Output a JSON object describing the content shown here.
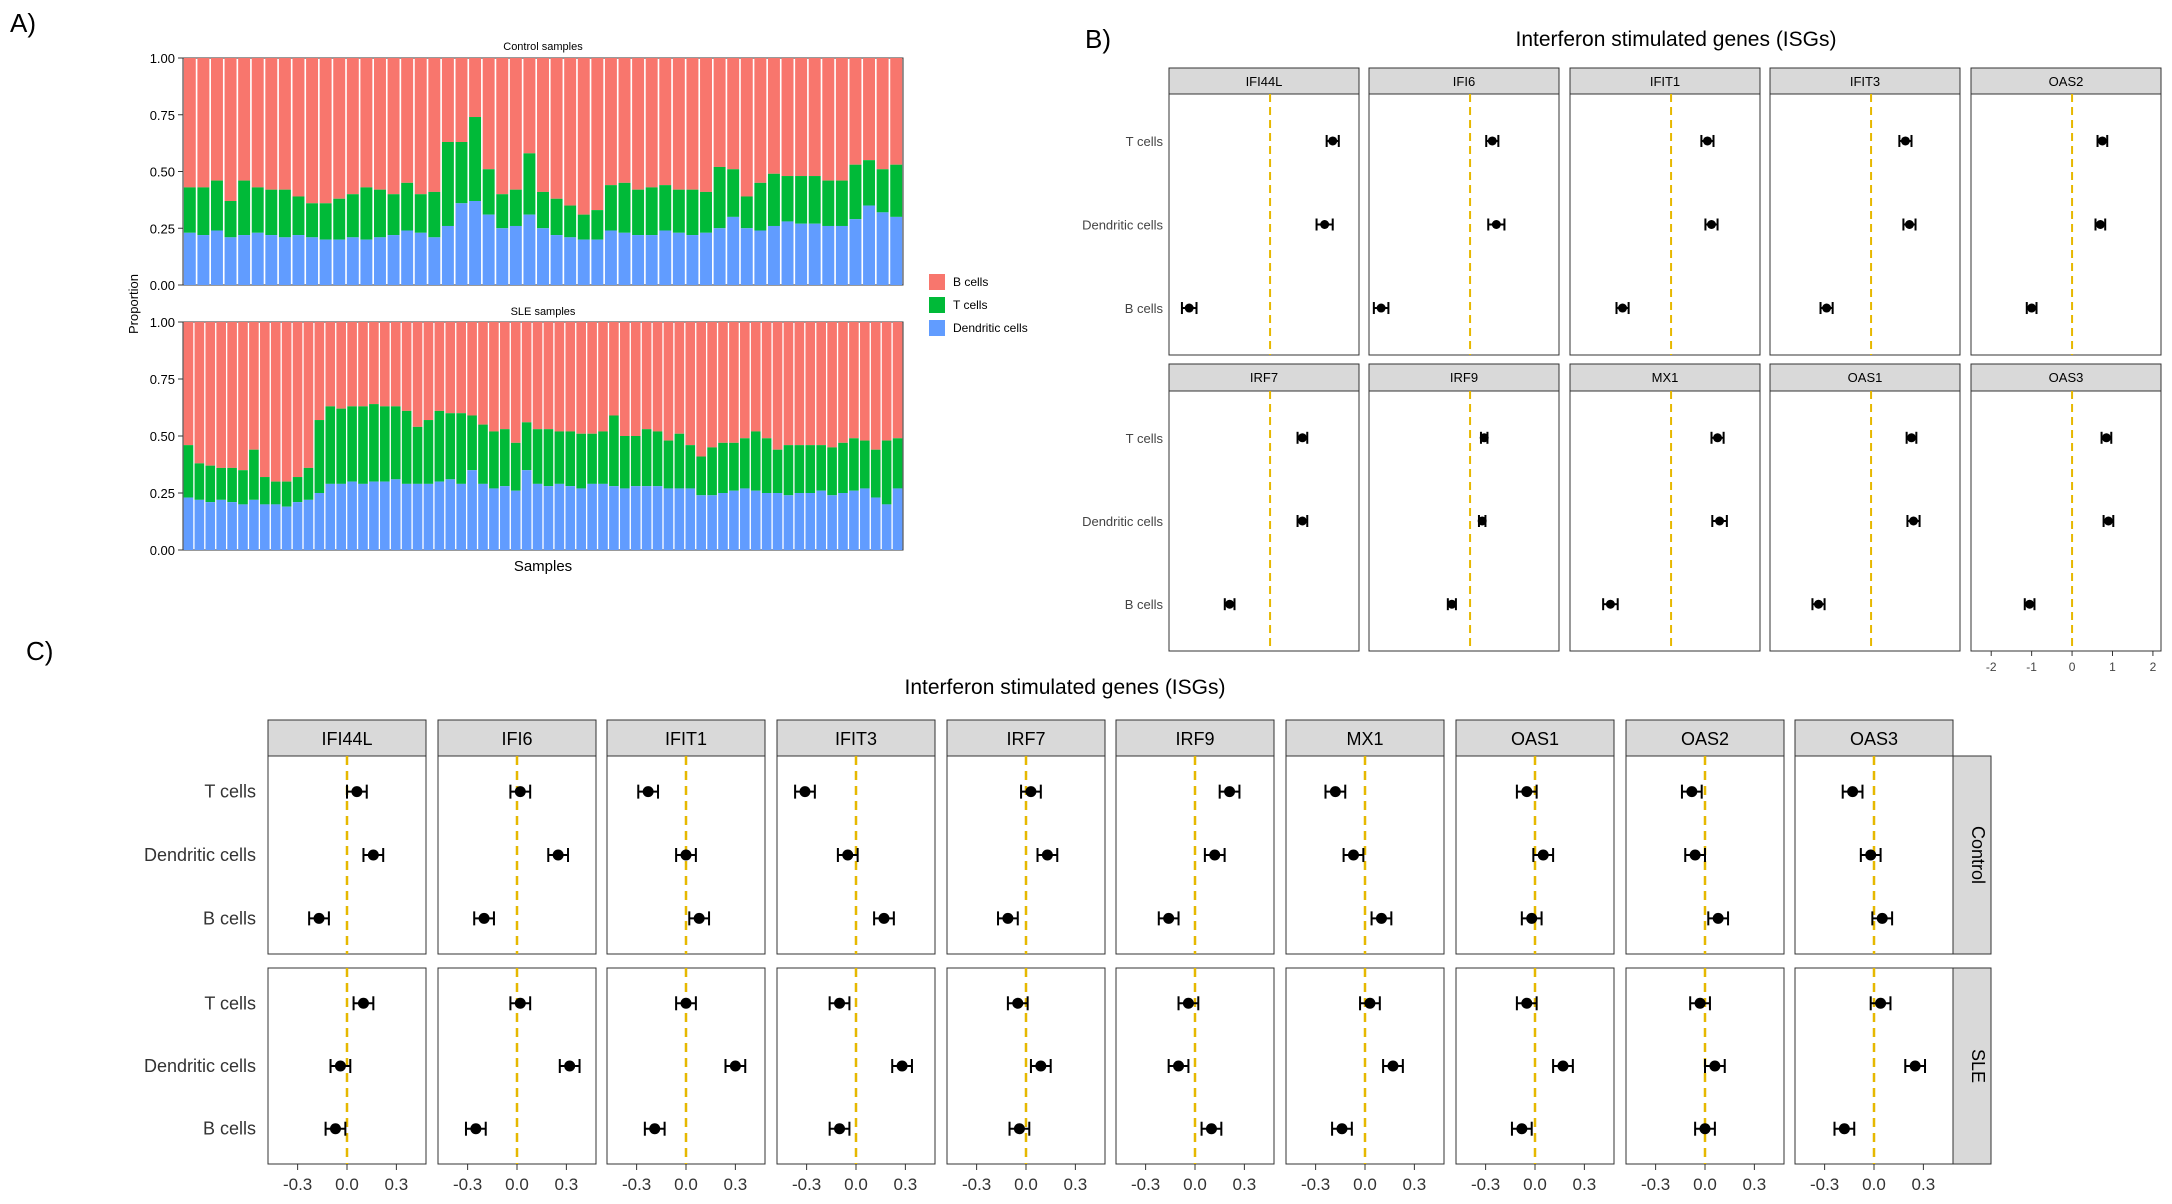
{
  "panel_labels": {
    "a": "A)",
    "b": "B)",
    "c": "C)"
  },
  "colors": {
    "b_cells": "#F8766D",
    "t_cells": "#00BA38",
    "dendritic": "#619CFF",
    "ref_line": "#E6B800",
    "strip": "#D9D9D9"
  },
  "chart_data": [
    {
      "type": "bar",
      "id": "A",
      "stacked": true,
      "xlabel": "Samples",
      "ylabel": "Proportion",
      "yticks": [
        "0.00",
        "0.25",
        "0.50",
        "0.75",
        "1.00"
      ],
      "ylim": [
        0,
        1
      ],
      "legend": [
        "B cells",
        "T cells",
        "Dendritic cells"
      ],
      "legend_position": "right",
      "facets": [
        {
          "title": "Control samples",
          "dendritic": [
            0.23,
            0.22,
            0.24,
            0.21,
            0.22,
            0.23,
            0.22,
            0.21,
            0.22,
            0.21,
            0.2,
            0.2,
            0.21,
            0.2,
            0.21,
            0.22,
            0.24,
            0.23,
            0.21,
            0.26,
            0.36,
            0.37,
            0.31,
            0.25,
            0.26,
            0.31,
            0.25,
            0.22,
            0.21,
            0.2,
            0.2,
            0.24,
            0.23,
            0.22,
            0.22,
            0.24,
            0.23,
            0.22,
            0.23,
            0.25,
            0.3,
            0.25,
            0.24,
            0.26,
            0.28,
            0.27,
            0.27,
            0.26,
            0.26,
            0.29,
            0.35,
            0.32,
            0.3
          ],
          "t_cells": [
            0.2,
            0.21,
            0.22,
            0.16,
            0.24,
            0.2,
            0.2,
            0.21,
            0.17,
            0.15,
            0.16,
            0.18,
            0.19,
            0.23,
            0.21,
            0.18,
            0.21,
            0.17,
            0.2,
            0.37,
            0.27,
            0.37,
            0.2,
            0.15,
            0.16,
            0.27,
            0.16,
            0.16,
            0.14,
            0.11,
            0.13,
            0.2,
            0.22,
            0.2,
            0.21,
            0.2,
            0.19,
            0.2,
            0.18,
            0.27,
            0.21,
            0.14,
            0.21,
            0.23,
            0.2,
            0.21,
            0.21,
            0.2,
            0.2,
            0.24,
            0.2,
            0.19,
            0.23
          ]
        },
        {
          "title": "SLE samples",
          "dendritic": [
            0.23,
            0.22,
            0.21,
            0.22,
            0.21,
            0.2,
            0.22,
            0.2,
            0.2,
            0.19,
            0.21,
            0.22,
            0.25,
            0.29,
            0.29,
            0.3,
            0.29,
            0.3,
            0.3,
            0.31,
            0.29,
            0.29,
            0.29,
            0.3,
            0.31,
            0.29,
            0.35,
            0.29,
            0.27,
            0.28,
            0.26,
            0.35,
            0.29,
            0.28,
            0.29,
            0.28,
            0.27,
            0.29,
            0.29,
            0.28,
            0.27,
            0.28,
            0.28,
            0.28,
            0.27,
            0.27,
            0.27,
            0.24,
            0.24,
            0.25,
            0.26,
            0.27,
            0.26,
            0.25,
            0.25,
            0.24,
            0.25,
            0.25,
            0.26,
            0.24,
            0.25,
            0.26,
            0.27,
            0.23,
            0.2,
            0.27
          ],
          "t_cells": [
            0.23,
            0.16,
            0.16,
            0.14,
            0.15,
            0.15,
            0.22,
            0.12,
            0.1,
            0.11,
            0.11,
            0.14,
            0.32,
            0.34,
            0.33,
            0.33,
            0.34,
            0.34,
            0.33,
            0.32,
            0.32,
            0.25,
            0.28,
            0.31,
            0.29,
            0.31,
            0.24,
            0.26,
            0.25,
            0.25,
            0.21,
            0.21,
            0.24,
            0.25,
            0.23,
            0.24,
            0.24,
            0.22,
            0.23,
            0.31,
            0.23,
            0.22,
            0.25,
            0.24,
            0.21,
            0.24,
            0.19,
            0.17,
            0.21,
            0.22,
            0.21,
            0.22,
            0.26,
            0.24,
            0.19,
            0.22,
            0.21,
            0.21,
            0.2,
            0.21,
            0.22,
            0.23,
            0.21,
            0.21,
            0.28,
            0.22
          ]
        }
      ]
    },
    {
      "type": "scatter",
      "id": "B",
      "title": "Interferon stimulated genes (ISGs)",
      "subtype": "forest",
      "xlim": [
        -2.5,
        2.2
      ],
      "xticks": [
        "-2",
        "-1",
        "0",
        "1",
        "2"
      ],
      "reference_line": 0,
      "rows": [
        "T cells",
        "Dendritic cells",
        "B cells"
      ],
      "facets": [
        {
          "gene": "IFI44L",
          "estimates": [
            1.55,
            1.35,
            -2.0
          ],
          "ci": [
            0.15,
            0.2,
            0.18
          ]
        },
        {
          "gene": "IFI6",
          "estimates": [
            0.55,
            0.65,
            -2.2
          ],
          "ci": [
            0.15,
            0.2,
            0.18
          ]
        },
        {
          "gene": "IFIT1",
          "estimates": [
            0.9,
            1.0,
            -1.2
          ],
          "ci": [
            0.15,
            0.15,
            0.15
          ]
        },
        {
          "gene": "IFIT3",
          "estimates": [
            0.85,
            0.95,
            -1.1
          ],
          "ci": [
            0.15,
            0.15,
            0.15
          ]
        },
        {
          "gene": "OAS2",
          "estimates": [
            0.75,
            0.7,
            -1.0
          ],
          "ci": [
            0.12,
            0.12,
            0.12
          ]
        },
        {
          "gene": "IRF7",
          "estimates": [
            0.8,
            0.8,
            -1.0
          ],
          "ci": [
            0.12,
            0.12,
            0.12
          ]
        },
        {
          "gene": "IRF9",
          "estimates": [
            0.35,
            0.3,
            -0.45
          ],
          "ci": [
            0.08,
            0.08,
            0.1
          ]
        },
        {
          "gene": "MX1",
          "estimates": [
            1.15,
            1.2,
            -1.5
          ],
          "ci": [
            0.15,
            0.18,
            0.18
          ]
        },
        {
          "gene": "OAS1",
          "estimates": [
            1.0,
            1.05,
            -1.3
          ],
          "ci": [
            0.12,
            0.15,
            0.15
          ]
        },
        {
          "gene": "OAS3",
          "estimates": [
            0.85,
            0.9,
            -1.05
          ],
          "ci": [
            0.12,
            0.12,
            0.12
          ]
        }
      ]
    },
    {
      "type": "scatter",
      "id": "C",
      "title": "Interferon stimulated genes (ISGs)",
      "subtype": "forest",
      "xlim": [
        -0.48,
        0.48
      ],
      "xticks": [
        "-0.3",
        "0.0",
        "0.3"
      ],
      "reference_line": 0,
      "rows": [
        "T cells",
        "Dendritic cells",
        "B cells"
      ],
      "genes": [
        "IFI44L",
        "IFI6",
        "IFIT1",
        "IFIT3",
        "IRF7",
        "IRF9",
        "MX1",
        "OAS1",
        "OAS2",
        "OAS3"
      ],
      "groups": [
        "Control",
        "SLE"
      ],
      "estimates": {
        "Control": [
          [
            0.06,
            0.16,
            -0.17
          ],
          [
            0.02,
            0.25,
            -0.2
          ],
          [
            -0.23,
            0.0,
            0.08
          ],
          [
            -0.31,
            -0.05,
            0.17
          ],
          [
            0.03,
            0.13,
            -0.11
          ],
          [
            0.21,
            0.12,
            -0.16
          ],
          [
            -0.18,
            -0.07,
            0.1
          ],
          [
            -0.05,
            0.05,
            -0.02
          ],
          [
            -0.08,
            -0.06,
            0.08
          ],
          [
            -0.13,
            -0.02,
            0.05
          ]
        ],
        "SLE": [
          [
            0.1,
            -0.04,
            -0.07
          ],
          [
            0.02,
            0.32,
            -0.25
          ],
          [
            0.0,
            0.3,
            -0.19
          ],
          [
            -0.1,
            0.28,
            -0.1
          ],
          [
            -0.05,
            0.09,
            -0.04
          ],
          [
            -0.04,
            -0.1,
            0.1
          ],
          [
            0.03,
            0.17,
            -0.14
          ],
          [
            -0.05,
            0.17,
            -0.08
          ],
          [
            -0.03,
            0.06,
            0.0
          ],
          [
            0.04,
            0.25,
            -0.18
          ]
        ]
      },
      "ci": 0.06
    }
  ]
}
